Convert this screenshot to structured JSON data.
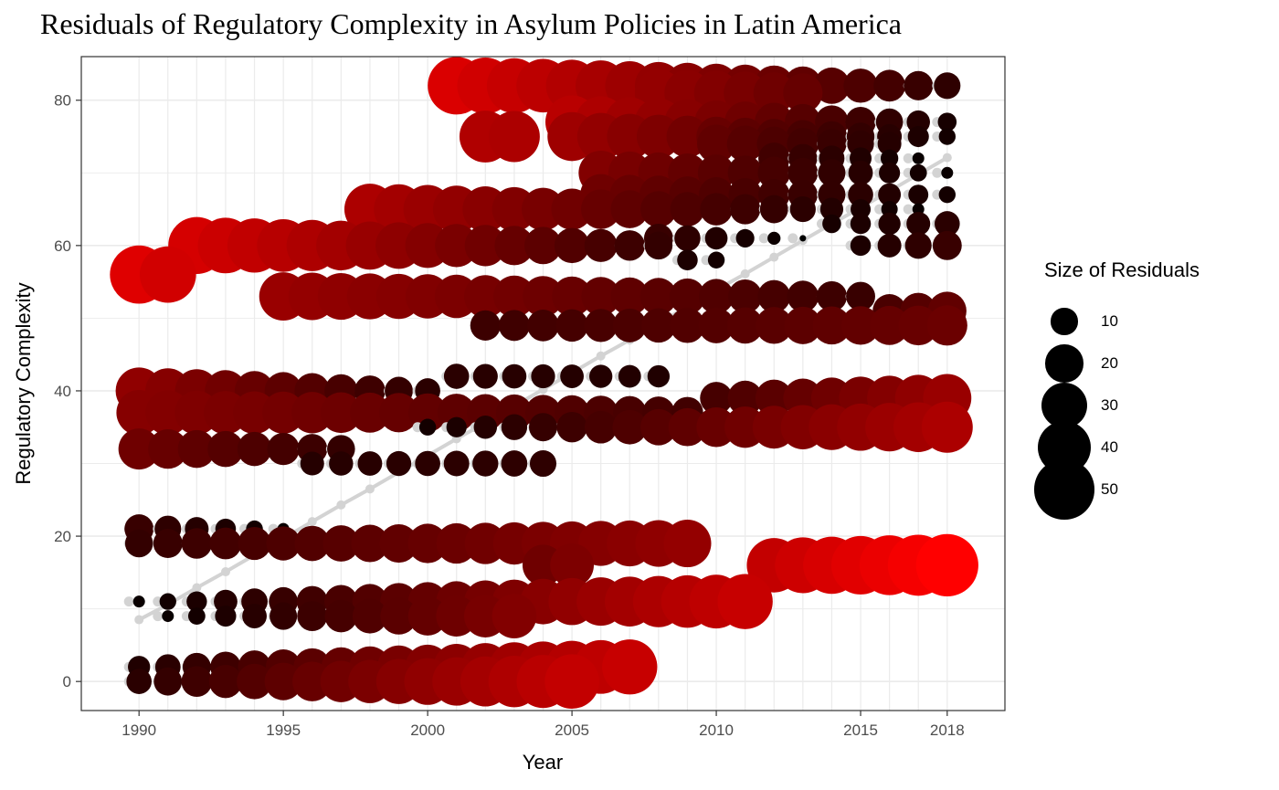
{
  "chart_data": {
    "type": "scatter",
    "title": "Residuals of Regulatory Complexity in Asylum Policies in Latin America",
    "xlabel": "Year",
    "ylabel": "Regulatory Complexity",
    "xlim": [
      1988,
      2020
    ],
    "ylim": [
      -4,
      86
    ],
    "x_ticks": [
      "1990",
      "1995",
      "2000",
      "2005",
      "2010",
      "2015",
      "2018"
    ],
    "y_ticks": [
      "0",
      "20",
      "40",
      "60",
      "80"
    ],
    "grid": true,
    "legend_position": "right",
    "legend": {
      "title": "Size of Residuals",
      "entries": [
        {
          "label": "10",
          "value": 10
        },
        {
          "label": "20",
          "value": 20
        },
        {
          "label": "30",
          "value": 30
        },
        {
          "label": "40",
          "value": 40
        },
        {
          "label": "50",
          "value": 50
        }
      ]
    },
    "colors": {
      "low": "#000000",
      "high": "#ff0000",
      "fitted_line": "#d3d3d3",
      "fitted_points": "#d3d3d3"
    },
    "fitted_line": {
      "x": [
        1990,
        1991,
        1992,
        1993,
        1994,
        1995,
        1996,
        1997,
        1998,
        1999,
        2000,
        2001,
        2002,
        2003,
        2004,
        2005,
        2006,
        2007,
        2008,
        2009,
        2010,
        2011,
        2012,
        2013,
        2014,
        2015,
        2016,
        2017,
        2018
      ],
      "y": [
        8.5,
        10.6,
        12.9,
        15.1,
        17.4,
        19.7,
        22.0,
        24.3,
        26.5,
        28.8,
        31.1,
        33.4,
        35.6,
        37.9,
        40.2,
        42.5,
        44.8,
        47.0,
        49.3,
        51.6,
        53.9,
        56.1,
        58.4,
        60.7,
        63.0,
        65.2,
        67.5,
        69.8,
        72.1
      ]
    },
    "series": [
      {
        "y": 82,
        "x_start": 2001,
        "x_end": 2018,
        "residual_start": 47,
        "residual_end": 10
      },
      {
        "y": 81,
        "x_start": 2008,
        "x_end": 2013,
        "residual_start": 32,
        "residual_end": 22
      },
      {
        "y": 77,
        "x_start": 2005,
        "x_end": 2018,
        "residual_start": 40,
        "residual_end": 5
      },
      {
        "y": 75,
        "x_start": 2002,
        "x_end": 2003,
        "residual_start": 38,
        "residual_end": 37
      },
      {
        "y": 75,
        "x_start": 2005,
        "x_end": 2018,
        "residual_start": 34,
        "residual_end": 4
      },
      {
        "y": 74,
        "x_start": 2010,
        "x_end": 2016,
        "residual_start": 21,
        "residual_end": 8
      },
      {
        "y": 72,
        "x_start": 2012,
        "x_end": 2017,
        "residual_start": 14,
        "residual_end": 2
      },
      {
        "y": 70,
        "x_start": 2006,
        "x_end": 2018,
        "residual_start": 28,
        "residual_end": 2
      },
      {
        "y": 67,
        "x_start": 2006,
        "x_end": 2018,
        "residual_start": 24,
        "residual_end": 4
      },
      {
        "y": 65,
        "x_start": 1998,
        "x_end": 2017,
        "residual_start": 37,
        "residual_end": 2
      },
      {
        "y": 63,
        "x_start": 2014,
        "x_end": 2018,
        "residual_start": 5,
        "residual_end": 9
      },
      {
        "y": 61,
        "x_start": 2008,
        "x_end": 2013,
        "residual_start": 12,
        "residual_end": 0
      },
      {
        "y": 60,
        "x_start": 1992,
        "x_end": 2008,
        "residual_start": 46,
        "residual_end": 11
      },
      {
        "y": 60,
        "x_start": 2015,
        "x_end": 2018,
        "residual_start": 6,
        "residual_end": 12
      },
      {
        "y": 58,
        "x_start": 2009,
        "x_end": 2010,
        "residual_start": 6,
        "residual_end": 4
      },
      {
        "y": 56,
        "x_start": 1990,
        "x_end": 1991,
        "residual_start": 48,
        "residual_end": 45
      },
      {
        "y": 53,
        "x_start": 1995,
        "x_end": 2015,
        "residual_start": 33,
        "residual_end": 12
      },
      {
        "y": 51,
        "x_start": 2016,
        "x_end": 2018,
        "residual_start": 16,
        "residual_end": 21
      },
      {
        "y": 49,
        "x_start": 2002,
        "x_end": 2018,
        "residual_start": 13,
        "residual_end": 23
      },
      {
        "y": 42,
        "x_start": 2001,
        "x_end": 2008,
        "residual_start": 9,
        "residual_end": 7
      },
      {
        "y": 40,
        "x_start": 1990,
        "x_end": 2000,
        "residual_start": 31,
        "residual_end": 9
      },
      {
        "y": 39,
        "x_start": 2010,
        "x_end": 2018,
        "residual_start": 15,
        "residual_end": 33
      },
      {
        "y": 37,
        "x_start": 1990,
        "x_end": 2009,
        "residual_start": 29,
        "residual_end": 14
      },
      {
        "y": 35,
        "x_start": 2000,
        "x_end": 2018,
        "residual_start": 4,
        "residual_end": 37
      },
      {
        "y": 32,
        "x_start": 1990,
        "x_end": 1997,
        "residual_start": 24,
        "residual_end": 11
      },
      {
        "y": 30,
        "x_start": 1996,
        "x_end": 2004,
        "residual_start": 8,
        "residual_end": 10
      },
      {
        "y": 21,
        "x_start": 1990,
        "x_end": 1995,
        "residual_start": 12,
        "residual_end": 2
      },
      {
        "y": 19,
        "x_start": 1990,
        "x_end": 2009,
        "residual_start": 11,
        "residual_end": 32
      },
      {
        "y": 16,
        "x_start": 2004,
        "x_end": 2005,
        "residual_start": 24,
        "residual_end": 27
      },
      {
        "y": 16,
        "x_start": 2012,
        "x_end": 2018,
        "residual_start": 42,
        "residual_end": 55
      },
      {
        "y": 11,
        "x_start": 1990,
        "x_end": 2011,
        "residual_start": 2,
        "residual_end": 43
      },
      {
        "y": 9,
        "x_start": 1991,
        "x_end": 2003,
        "residual_start": 2,
        "residual_end": 28
      },
      {
        "y": 2,
        "x_start": 1990,
        "x_end": 2007,
        "residual_start": 7,
        "residual_end": 43
      },
      {
        "y": 0,
        "x_start": 1990,
        "x_end": 2005,
        "residual_start": 9,
        "residual_end": 42
      }
    ]
  }
}
